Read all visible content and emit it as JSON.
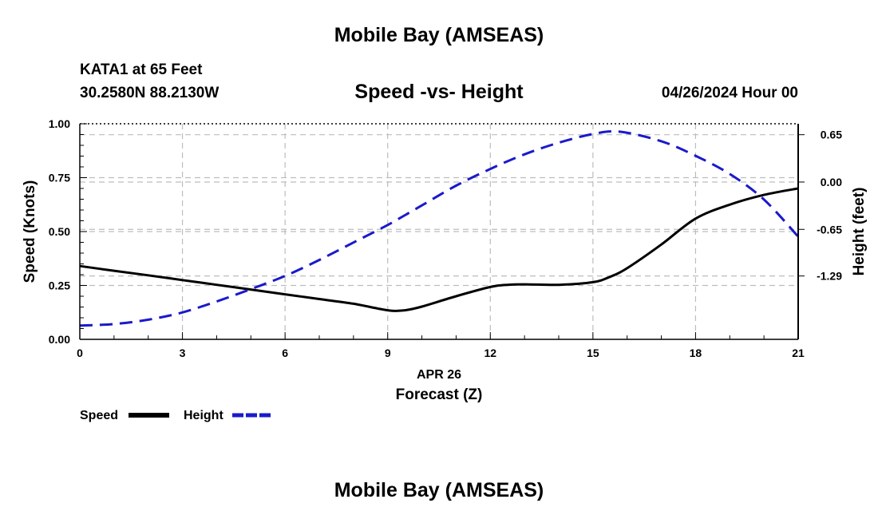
{
  "header": {
    "title": "Mobile Bay (AMSEAS)",
    "station": "KATA1 at 65 Feet",
    "coordinates": "30.2580N  88.2130W",
    "subtitle": "Speed -vs- Height",
    "datetime": "04/26/2024 Hour 00"
  },
  "footer": {
    "title": "Mobile Bay (AMSEAS)"
  },
  "colors": {
    "speed": "#000000",
    "height": "#1a1acc",
    "grid": "#bdbdbd"
  },
  "chart_data": {
    "type": "line",
    "xlabel": "Forecast (Z)",
    "xdate": "APR 26",
    "ylabel": "Speed (Knots)",
    "y2label": "Height (feet)",
    "xlim": [
      0,
      21
    ],
    "ylim": [
      0,
      1
    ],
    "y2lim": [
      -2.16,
      0.8
    ],
    "xticks": [
      0,
      3,
      6,
      9,
      12,
      15,
      18,
      21
    ],
    "xtick_labels": [
      "0",
      "3",
      "6",
      "9",
      "12",
      "15",
      "18",
      "21"
    ],
    "yticks": [
      0,
      0.25,
      0.5,
      0.75,
      1.0
    ],
    "ytick_labels": [
      "0.00",
      "0.25",
      "0.50",
      "0.75",
      "1.00"
    ],
    "y2ticks": [
      0.65,
      0.0,
      -0.65,
      -1.29
    ],
    "y2tick_labels": [
      "0.65",
      "0.00",
      "-0.65",
      "-1.29"
    ],
    "grid": true,
    "legend": [
      {
        "name": "Speed",
        "style": "solid"
      },
      {
        "name": "Height",
        "style": "dashed"
      }
    ],
    "series": [
      {
        "name": "Speed",
        "axis": "left",
        "x": [
          0,
          1,
          2,
          3,
          4,
          5,
          6,
          7,
          8,
          9,
          9.5,
          10,
          11,
          12,
          12.5,
          13,
          14,
          15,
          15.5,
          16,
          17,
          18,
          19,
          20,
          21
        ],
        "values": [
          0.34,
          0.318,
          0.297,
          0.275,
          0.253,
          0.231,
          0.209,
          0.187,
          0.165,
          0.135,
          0.135,
          0.152,
          0.2,
          0.243,
          0.253,
          0.255,
          0.253,
          0.265,
          0.29,
          0.33,
          0.44,
          0.56,
          0.625,
          0.67,
          0.7
        ]
      },
      {
        "name": "Height",
        "axis": "right",
        "x": [
          0,
          1,
          2,
          3,
          4,
          5,
          6,
          7,
          8,
          9,
          10,
          11,
          12,
          13,
          14,
          15,
          15.8,
          17,
          18,
          19,
          20,
          21
        ],
        "values": [
          -1.97,
          -1.95,
          -1.89,
          -1.79,
          -1.64,
          -1.47,
          -1.29,
          -1.07,
          -0.83,
          -0.59,
          -0.32,
          -0.05,
          0.18,
          0.38,
          0.54,
          0.66,
          0.69,
          0.56,
          0.36,
          0.11,
          -0.24,
          -0.75
        ]
      }
    ]
  }
}
